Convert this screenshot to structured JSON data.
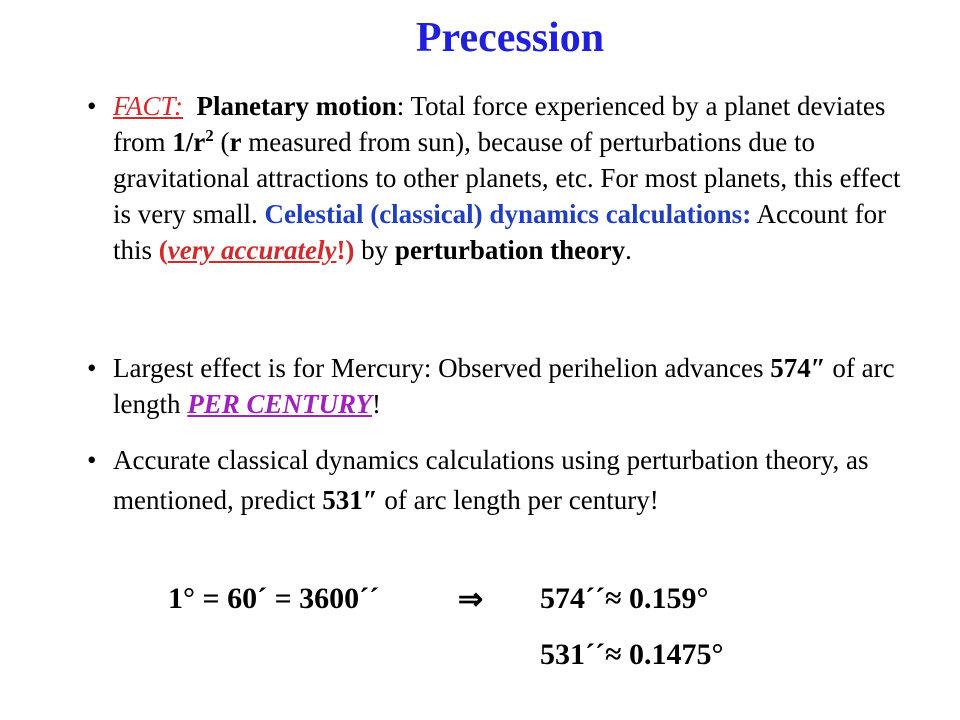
{
  "title": "Precession",
  "bullets": [
    {
      "segments": [
        "FACT:",
        "Planetary motion",
        ": Total force experienced by a planet deviates from ",
        "1/r",
        "2",
        " (",
        "r",
        " measured from sun), because of perturbations due to gravitational attractions to other planets, etc. For most planets, this effect is very small. ",
        "Celestial (classical) dynamics calculations:",
        " Account for this ",
        "(",
        "very accurately",
        "!)",
        " by ",
        "perturbation theory",
        "."
      ]
    },
    {
      "segments": [
        "Largest effect is for Mercury: Observed perihelion advances ",
        "574″",
        " of arc length ",
        "PER CENTURY",
        "!"
      ]
    },
    {
      "segments": [
        "Accurate classical dynamics calculations using perturbation theory, as mentioned, predict ",
        "531″",
        " of arc length per century!"
      ]
    }
  ],
  "equations": {
    "conversion": "1° = 60´ = 3600´´",
    "implies": "⇒",
    "result_574": "574´´≈ 0.159°",
    "result_531": "531´´≈ 0.1475°"
  }
}
